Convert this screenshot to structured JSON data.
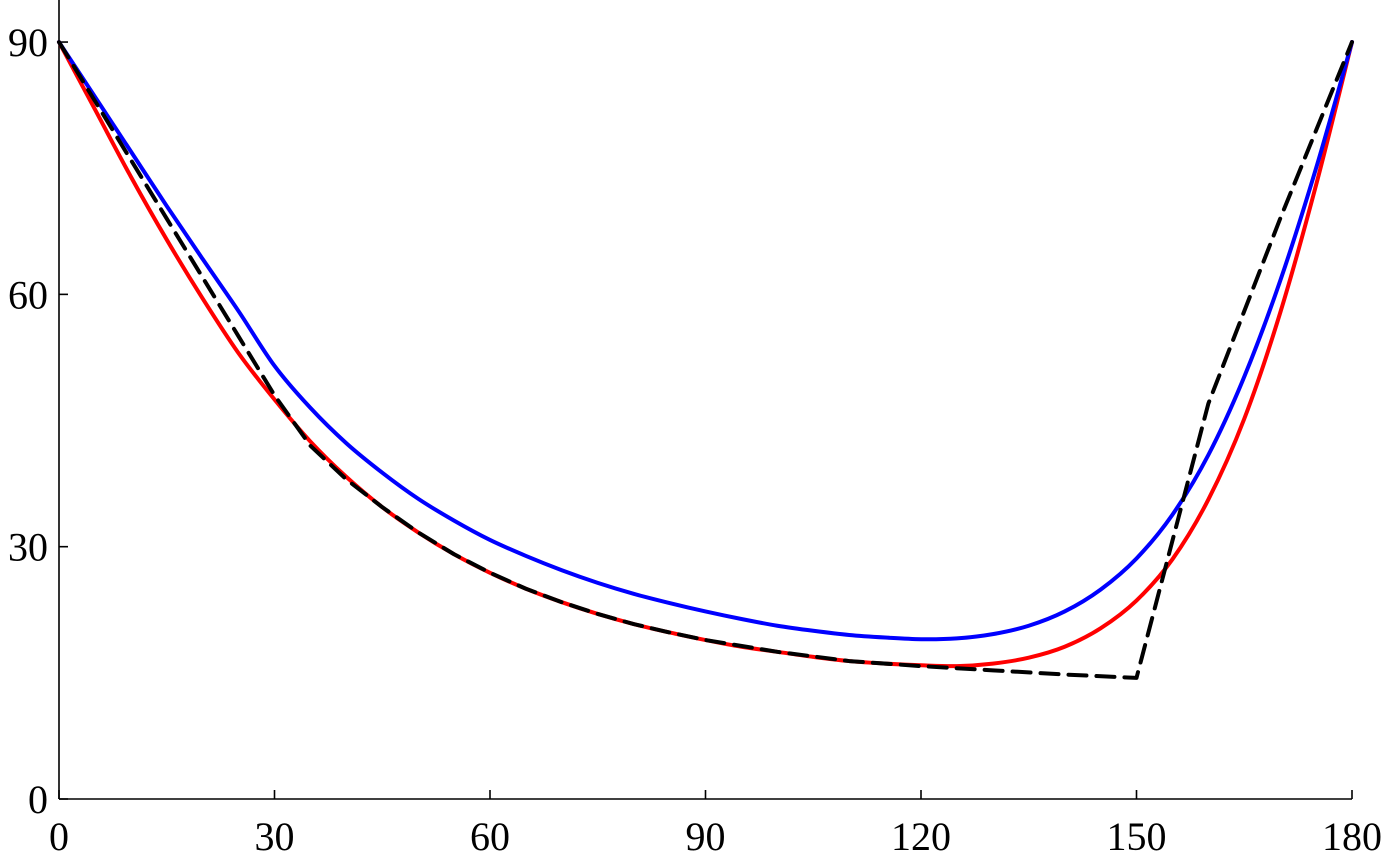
{
  "chart_data": {
    "type": "line",
    "title": "",
    "xlabel": "",
    "ylabel": "",
    "xlim": [
      0,
      180
    ],
    "ylim": [
      0,
      95
    ],
    "x_ticks": [
      0,
      30,
      60,
      90,
      120,
      150,
      180
    ],
    "y_ticks": [
      0,
      30,
      60,
      90
    ],
    "x_tick_labels": [
      "0",
      "30",
      "60",
      "90",
      "120",
      "150",
      "180"
    ],
    "y_tick_labels": [
      "0",
      "30",
      "60",
      "90"
    ],
    "grid": false,
    "legend": "none",
    "series": [
      {
        "color": "#0000ff",
        "dash": "solid",
        "points": [
          [
            0,
            90
          ],
          [
            5,
            83.5
          ],
          [
            10,
            77
          ],
          [
            15,
            70.5
          ],
          [
            20,
            64.2
          ],
          [
            25,
            58
          ],
          [
            30,
            51.5
          ],
          [
            35,
            46.5
          ],
          [
            40,
            42.3
          ],
          [
            45,
            38.8
          ],
          [
            50,
            35.7
          ],
          [
            55,
            33.1
          ],
          [
            60,
            30.8
          ],
          [
            65,
            28.9
          ],
          [
            70,
            27.2
          ],
          [
            75,
            25.7
          ],
          [
            80,
            24.4
          ],
          [
            85,
            23.3
          ],
          [
            90,
            22.3
          ],
          [
            95,
            21.4
          ],
          [
            100,
            20.6
          ],
          [
            105,
            20
          ],
          [
            110,
            19.5
          ],
          [
            115,
            19.2
          ],
          [
            120,
            19
          ],
          [
            125,
            19.1
          ],
          [
            130,
            19.6
          ],
          [
            135,
            20.6
          ],
          [
            140,
            22.3
          ],
          [
            145,
            24.9
          ],
          [
            150,
            28.6
          ],
          [
            155,
            33.8
          ],
          [
            160,
            40.9
          ],
          [
            165,
            50.2
          ],
          [
            170,
            61.6
          ],
          [
            175,
            75
          ],
          [
            180,
            90
          ]
        ]
      },
      {
        "color": "#ff0000",
        "dash": "solid",
        "points": [
          [
            0,
            90
          ],
          [
            5,
            82
          ],
          [
            10,
            74
          ],
          [
            15,
            66.5
          ],
          [
            20,
            59.5
          ],
          [
            25,
            53
          ],
          [
            30,
            47.5
          ],
          [
            35,
            42.5
          ],
          [
            40,
            38.3
          ],
          [
            45,
            34.7
          ],
          [
            50,
            31.7
          ],
          [
            55,
            29.1
          ],
          [
            60,
            26.9
          ],
          [
            65,
            25
          ],
          [
            70,
            23.4
          ],
          [
            75,
            22
          ],
          [
            80,
            20.8
          ],
          [
            85,
            19.8
          ],
          [
            90,
            18.9
          ],
          [
            95,
            18.1
          ],
          [
            100,
            17.5
          ],
          [
            105,
            16.9
          ],
          [
            110,
            16.4
          ],
          [
            115,
            16.1
          ],
          [
            120,
            15.9
          ],
          [
            125,
            15.8
          ],
          [
            130,
            16.1
          ],
          [
            135,
            16.8
          ],
          [
            140,
            18.1
          ],
          [
            145,
            20.3
          ],
          [
            150,
            23.6
          ],
          [
            155,
            28.5
          ],
          [
            160,
            35.6
          ],
          [
            165,
            45.2
          ],
          [
            170,
            57.8
          ],
          [
            175,
            73
          ],
          [
            180,
            90
          ]
        ]
      },
      {
        "color": "#000000",
        "dash": "dashed",
        "points": [
          [
            0,
            90
          ],
          [
            5,
            83
          ],
          [
            10,
            76
          ],
          [
            15,
            69
          ],
          [
            20,
            62
          ],
          [
            25,
            55
          ],
          [
            30,
            48
          ],
          [
            35,
            42
          ],
          [
            40,
            38
          ],
          [
            45,
            34.7
          ],
          [
            50,
            31.7
          ],
          [
            55,
            29.1
          ],
          [
            60,
            26.9
          ],
          [
            65,
            25
          ],
          [
            70,
            23.4
          ],
          [
            75,
            22
          ],
          [
            80,
            20.8
          ],
          [
            85,
            19.8
          ],
          [
            90,
            18.9
          ],
          [
            100,
            17.5
          ],
          [
            110,
            16.4
          ],
          [
            120,
            15.8
          ],
          [
            130,
            15.3
          ],
          [
            140,
            14.8
          ],
          [
            150,
            14.4
          ],
          [
            160,
            47
          ],
          [
            170,
            69
          ],
          [
            180,
            90
          ]
        ]
      }
    ]
  }
}
